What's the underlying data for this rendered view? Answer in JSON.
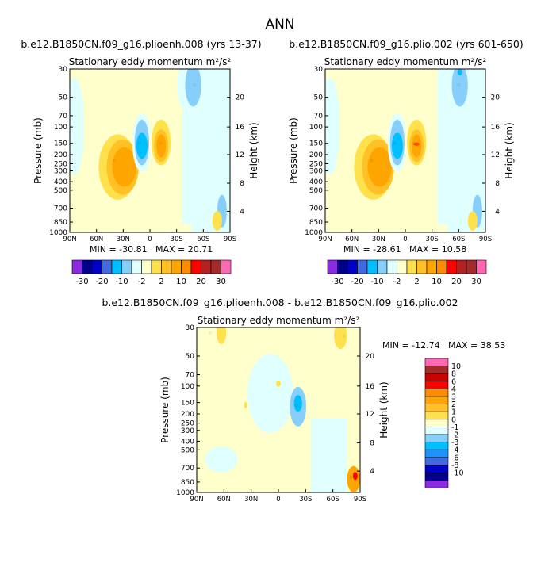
{
  "page": {
    "title": "ANN"
  },
  "chart_data": [
    {
      "type": "heatmap",
      "panel": "top-left",
      "case_label": "b.e12.B1850CN.f09_g16.plioenh.008 (yrs 13-37)",
      "title": "Stationary eddy momentum",
      "units": "m²/s²",
      "xlabel": "",
      "ylabel": "Pressure (mb)",
      "y2label": "Height (km)",
      "x_ticks": [
        "90N",
        "60N",
        "30N",
        "0",
        "30S",
        "60S",
        "90S"
      ],
      "y_ticks": [
        "30",
        "50",
        "70",
        "100",
        "150",
        "200",
        "250",
        "300",
        "400",
        "500",
        "700",
        "850",
        "1000"
      ],
      "y2_ticks": [
        "20",
        "16",
        "12",
        "8",
        "4"
      ],
      "min_label": "MIN = -30.81",
      "max_label": "MAX = 20.71",
      "min": -30.81,
      "max": 20.71,
      "features": [
        {
          "lat": 40,
          "p": 230,
          "value": 3
        },
        {
          "lat": 12,
          "p": 150,
          "value": -3
        },
        {
          "lat": -12,
          "p": 150,
          "value": 3
        },
        {
          "lat": -50,
          "p": 40,
          "value": -2
        }
      ]
    },
    {
      "type": "heatmap",
      "panel": "top-right",
      "case_label": "b.e12.B1850CN.f09_g16.plio.002 (yrs 601-650)",
      "title": "Stationary eddy momentum",
      "units": "m²/s²",
      "xlabel": "",
      "ylabel": "Pressure (mb)",
      "y2label": "Height (km)",
      "x_ticks": [
        "90N",
        "60N",
        "30N",
        "0",
        "30S",
        "60S",
        "90S"
      ],
      "y_ticks": [
        "30",
        "50",
        "70",
        "100",
        "150",
        "200",
        "250",
        "300",
        "400",
        "500",
        "700",
        "850",
        "1000"
      ],
      "y2_ticks": [
        "20",
        "16",
        "12",
        "8",
        "4"
      ],
      "min_label": "MIN = -28.61",
      "max_label": "MAX = 10.58",
      "min": -28.61,
      "max": 10.58,
      "features": [
        {
          "lat": 38,
          "p": 230,
          "value": 3
        },
        {
          "lat": 12,
          "p": 150,
          "value": -3
        },
        {
          "lat": -10,
          "p": 150,
          "value": 4
        },
        {
          "lat": -60,
          "p": 40,
          "value": -2
        }
      ]
    },
    {
      "type": "heatmap",
      "panel": "bottom",
      "case_label": "b.e12.B1850CN.f09_g16.plioenh.008 - b.e12.B1850CN.f09_g16.plio.002",
      "title": "Stationary eddy momentum",
      "units": "m²/s²",
      "xlabel": "",
      "ylabel": "Pressure (mb)",
      "y2label": "Height (km)",
      "x_ticks": [
        "90N",
        "60N",
        "30N",
        "0",
        "30S",
        "60S",
        "90S"
      ],
      "y_ticks": [
        "30",
        "50",
        "70",
        "100",
        "150",
        "200",
        "250",
        "300",
        "400",
        "500",
        "700",
        "850",
        "1000"
      ],
      "y2_ticks": [
        "20",
        "16",
        "12",
        "8",
        "4"
      ],
      "min_label": "MIN = -12.74",
      "max_label": "MAX = 38.53",
      "min": -12.74,
      "max": 38.53,
      "features": [
        {
          "lat": -20,
          "p": 160,
          "value": -3
        },
        {
          "lat": 75,
          "p": 33,
          "value": 2
        },
        {
          "lat": -72,
          "p": 35,
          "value": 2
        },
        {
          "lat": -80,
          "p": 800,
          "value": 10
        }
      ]
    }
  ],
  "legend_top": {
    "labels": [
      "-30",
      "-20",
      "-10",
      "-2",
      "2",
      "10",
      "20",
      "30"
    ],
    "levels": [
      -30,
      -20,
      -10,
      -5,
      -2,
      -1,
      1,
      2,
      5,
      10,
      20,
      30
    ],
    "colors": [
      "#8a2be2",
      "#00008b",
      "#0000cd",
      "#4169e1",
      "#00bfff",
      "#87cefa",
      "#e0ffff",
      "#ffffcc",
      "#ffe14d",
      "#ffc125",
      "#ffa500",
      "#ff8c00",
      "#ff0000",
      "#b22222",
      "#a52a2a",
      "#ff69b4"
    ]
  },
  "legend_bottom": {
    "labels": [
      "10",
      "8",
      "6",
      "4",
      "3",
      "2",
      "1",
      "0",
      "-1",
      "-2",
      "-3",
      "-4",
      "-6",
      "-8",
      "-10"
    ],
    "colors": [
      "#ff69b4",
      "#a52a2a",
      "#cd0000",
      "#ff0000",
      "#ff8c00",
      "#ffa500",
      "#ffc125",
      "#ffe14d",
      "#ffffcc",
      "#e0ffff",
      "#87cefa",
      "#00bfff",
      "#1e90ff",
      "#4169e1",
      "#0000cd",
      "#00008b",
      "#8a2be2"
    ]
  },
  "colors": {
    "neg1": "#e0ffff",
    "neg2": "#87cefa",
    "neg3": "#00bfff",
    "pos1": "#ffffcc",
    "pos2": "#ffe14d",
    "pos3": "#ffa500",
    "pos4": "#ff4500"
  }
}
